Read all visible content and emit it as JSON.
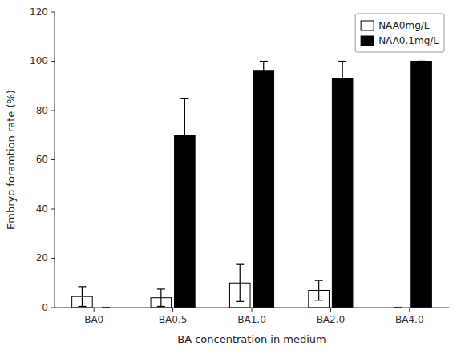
{
  "chart_data": {
    "type": "bar",
    "categories": [
      "BA0",
      "BA0.5",
      "BA1.0",
      "BA2.0",
      "BA4.0"
    ],
    "xlabel": "BA concentration in medium",
    "ylabel": "Embryo foramtion rate (%)",
    "series": [
      {
        "name": "NAA0mg/L",
        "color": "#ffffff",
        "values": [
          4.5,
          4.0,
          10.0,
          7.0,
          0.0
        ],
        "errors": [
          4.0,
          3.5,
          7.5,
          4.0,
          0.0
        ]
      },
      {
        "name": "NAA0.1mg/L",
        "color": "#000000",
        "values": [
          0.0,
          70.0,
          96.0,
          93.0,
          100.0
        ],
        "errors": [
          0.0,
          15.0,
          4.0,
          7.0,
          0.0
        ]
      }
    ],
    "ylim": [
      0,
      120
    ],
    "yticks": [
      0,
      20,
      40,
      60,
      80,
      100,
      120
    ],
    "legend": "upper right",
    "grid": false
  }
}
